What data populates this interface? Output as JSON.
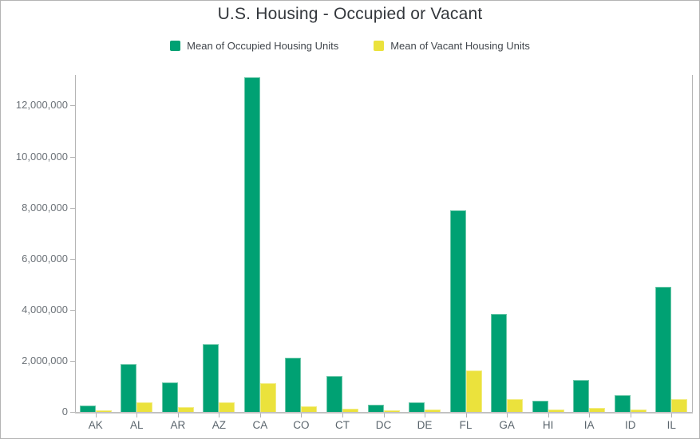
{
  "chart_data": {
    "type": "bar",
    "title": "U.S. Housing - Occupied or Vacant",
    "categories": [
      "AK",
      "AL",
      "AR",
      "AZ",
      "CA",
      "CO",
      "CT",
      "DC",
      "DE",
      "FL",
      "GA",
      "HI",
      "IA",
      "ID",
      "IL"
    ],
    "series": [
      {
        "name": "Mean of Occupied Housing Units",
        "color": "#00a173",
        "edge_color": "#6cc8aa",
        "values": [
          250000,
          1870000,
          1160000,
          2640000,
          13100000,
          2120000,
          1400000,
          270000,
          360000,
          7900000,
          3830000,
          450000,
          1260000,
          640000,
          4890000
        ]
      },
      {
        "name": "Mean of Vacant Housing Units",
        "color": "#ebe23c",
        "edge_color": "#f2ec82",
        "values": [
          70000,
          370000,
          200000,
          380000,
          1110000,
          230000,
          140000,
          40000,
          90000,
          1630000,
          510000,
          90000,
          150000,
          100000,
          500000
        ]
      }
    ],
    "xlabel": "",
    "ylabel": "",
    "ylim": [
      0,
      13200000
    ],
    "ytick_interval": 2000000,
    "ytick_labels": [
      "0",
      "2,000,000",
      "4,000,000",
      "6,000,000",
      "8,000,000",
      "10,000,000",
      "12,000,000"
    ],
    "grid": false,
    "legend_position": "top"
  },
  "colors": {
    "title_text": "#33373c",
    "legend_text": "#41464c",
    "axis_line": "#b5b5b5",
    "tick_label": "#6c7278",
    "category_label": "#5a646c",
    "frame_border": "#b4b4b4",
    "background": "#ffffff"
  }
}
